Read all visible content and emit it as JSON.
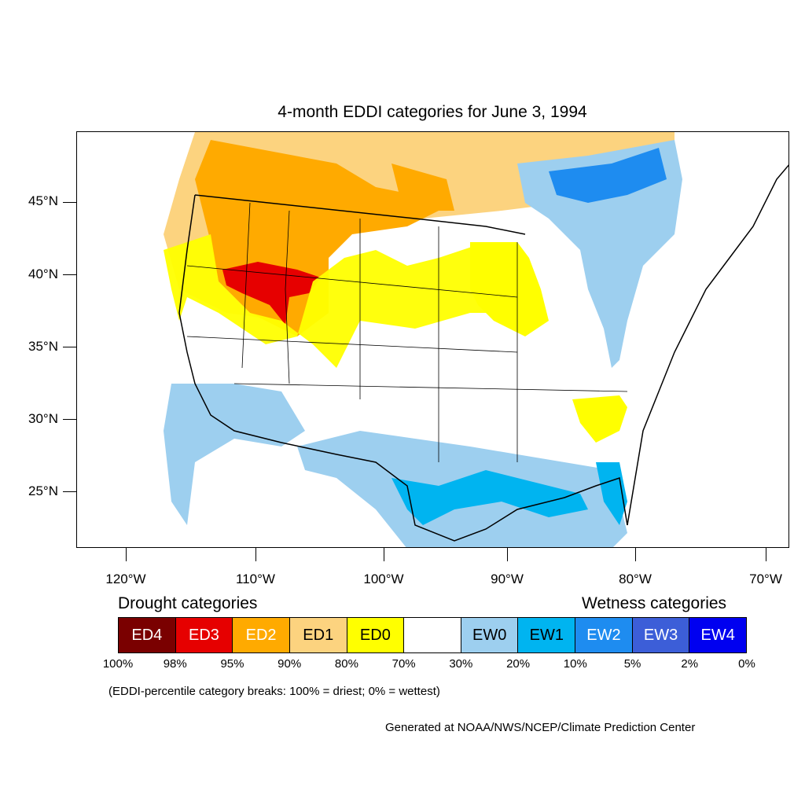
{
  "title": "4-month EDDI categories for June 3, 1994",
  "axes": {
    "lat_labels": [
      "45°N",
      "40°N",
      "35°N",
      "30°N",
      "25°N"
    ],
    "lon_labels": [
      "120°W",
      "110°W",
      "100°W",
      "90°W",
      "80°W",
      "70°W"
    ]
  },
  "legend": {
    "drought_heading": "Drought categories",
    "wetness_heading": "Wetness categories",
    "boxes": [
      {
        "label": "ED4",
        "color": "#7a0000",
        "text_color": "#ffffff"
      },
      {
        "label": "ED3",
        "color": "#e60000",
        "text_color": "#ffffff"
      },
      {
        "label": "ED2",
        "color": "#ffaa00",
        "text_color": "#ffffff"
      },
      {
        "label": "ED1",
        "color": "#fcd37f",
        "text_color": "#000000"
      },
      {
        "label": "ED0",
        "color": "#ffff00",
        "text_color": "#000000"
      },
      {
        "label": "",
        "color": "#ffffff",
        "text_color": "#000000"
      },
      {
        "label": "EW0",
        "color": "#9dcfef",
        "text_color": "#000000"
      },
      {
        "label": "EW1",
        "color": "#00b4f0",
        "text_color": "#000000"
      },
      {
        "label": "EW2",
        "color": "#1e8cf0",
        "text_color": "#ffffff"
      },
      {
        "label": "EW3",
        "color": "#3c5ed8",
        "text_color": "#ffffff"
      },
      {
        "label": "EW4",
        "color": "#0000f0",
        "text_color": "#ffffff"
      }
    ],
    "breaks": [
      "100%",
      "98%",
      "95%",
      "90%",
      "80%",
      "70%",
      "30%",
      "20%",
      "10%",
      "5%",
      "2%",
      "0%"
    ]
  },
  "footnote": "(EDDI-percentile category breaks: 100% = driest; 0% = wettest)",
  "credit": "Generated at NOAA/NWS/NCEP/Climate Prediction Center"
}
